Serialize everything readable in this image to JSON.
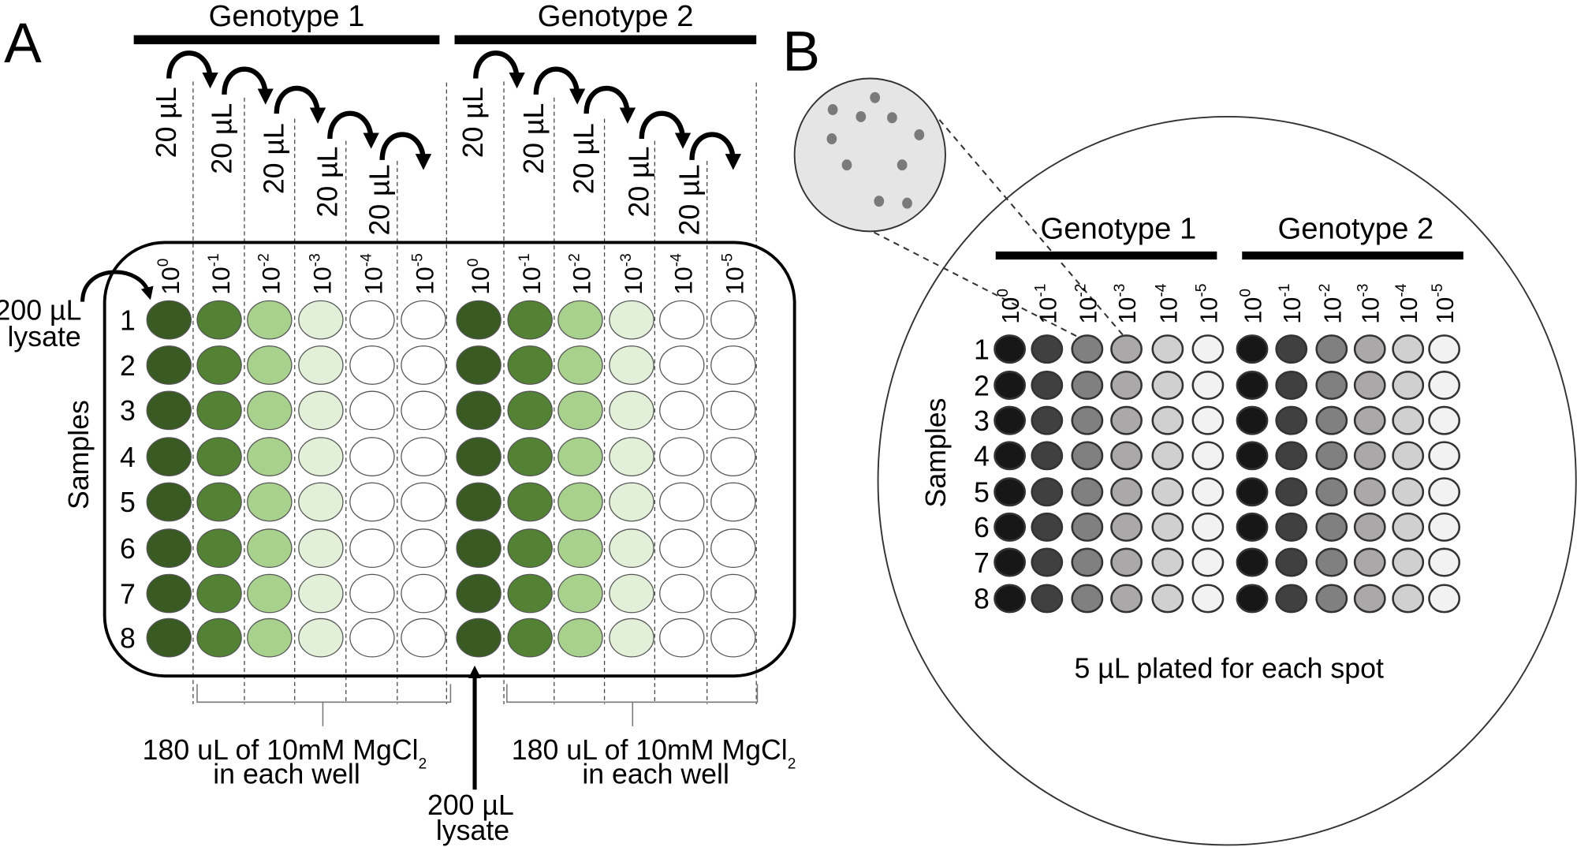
{
  "panels": {
    "a": "A",
    "b": "B"
  },
  "genotypes": [
    "Genotype 1",
    "Genotype 2"
  ],
  "dilution_base": "10",
  "dilution_exponents": [
    "0",
    "-1",
    "-2",
    "-3",
    "-4",
    "-5"
  ],
  "samples": [
    "1",
    "2",
    "3",
    "4",
    "5",
    "6",
    "7",
    "8"
  ],
  "samples_label": "Samples",
  "transfer_volume": "20 µL",
  "lysate": {
    "volume": "200 µL",
    "word": "lysate"
  },
  "diluent": {
    "line1": "180 uL of 10mM MgCl",
    "subscript": "2",
    "line2": "in each well"
  },
  "plating_note": "5 µL plated for each spot",
  "colors": {
    "plate_wells": [
      "#3a5a24",
      "#548235",
      "#a9d18e",
      "#e2f0d9",
      "#ffffff",
      "#ffffff"
    ],
    "spot_wells": [
      "#171717",
      "#404040",
      "#808080",
      "#aaa8a8",
      "#d0d0d0",
      "#f2f2f2"
    ],
    "petri_dish": "#e5e5e5",
    "colony": "#7a7a7a"
  }
}
